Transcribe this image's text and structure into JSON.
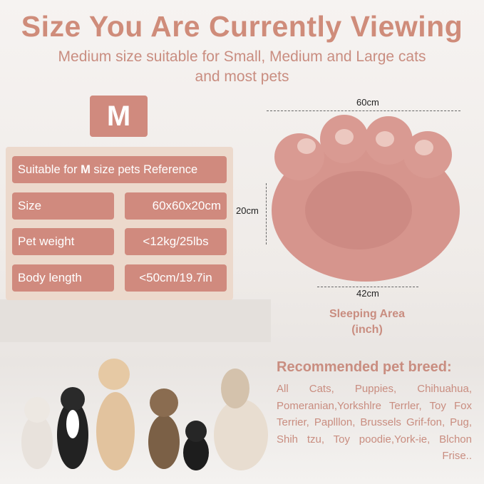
{
  "header": {
    "title": "Size You Are Currently Viewing",
    "subtitle_line1": "Medium size suitable for Small, Medium and Large cats",
    "subtitle_line2": "and most pets"
  },
  "size_badge": "M",
  "table": {
    "heading_prefix": "Suitable for ",
    "heading_bold": "M",
    "heading_suffix": " size pets Reference",
    "rows": [
      {
        "label": "Size",
        "value": "60x60x20cm"
      },
      {
        "label": "Pet weight",
        "value": "<12kg/25lbs"
      },
      {
        "label": "Body length",
        "value": "<50cm/19.7in"
      }
    ]
  },
  "dimensions": {
    "width": "60cm",
    "height": "20cm",
    "inner": "42cm",
    "area_label_line1": "Sleeping Area",
    "area_label_line2": "(inch)"
  },
  "breeds": {
    "title": "Recommended pet breed:",
    "text": "All Cats, Puppies, Chihuahua, Pomeranian,Yorkshlre Terrler, Toy Fox Terrier, Paplllon, Brussels Grif-fon, Pug, Shih tzu, Toy poodie,York-ie, Blchon Frise.."
  },
  "colors": {
    "accent": "#d08a7e",
    "title": "#cf8c7a",
    "panel": "#ecd9cc",
    "bed": "#d99a92"
  }
}
